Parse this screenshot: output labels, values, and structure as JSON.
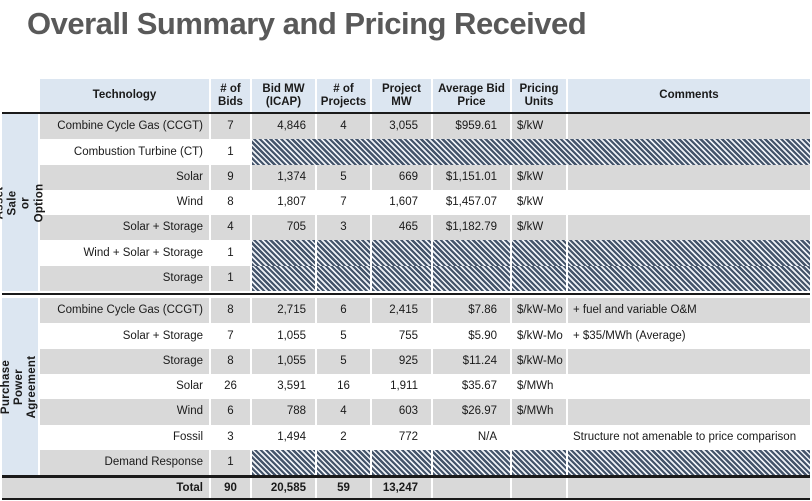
{
  "title": "Overall Summary and Pricing Received",
  "table": {
    "columns": [
      "Technology",
      "# of\nBids",
      "Bid MW\n(ICAP)",
      "# of\nProjects",
      "Project\nMW",
      "Average Bid\nPrice",
      "Pricing\nUnits",
      "Comments"
    ],
    "groups": [
      {
        "label": "Asset Sale or Option",
        "rows": [
          {
            "technology": "Combine Cycle Gas (CCGT)",
            "bids": "7",
            "bid_mw": "4,846",
            "projects": "4",
            "project_mw": "3,055",
            "avg_price": "$959.61",
            "units": "$/kW",
            "comments": "",
            "hatched": false
          },
          {
            "technology": "Combustion Turbine (CT)",
            "bids": "1",
            "bid_mw": "",
            "projects": "",
            "project_mw": "",
            "avg_price": "",
            "units": "",
            "comments": "",
            "hatched": true,
            "merged": true
          },
          {
            "technology": "Solar",
            "bids": "9",
            "bid_mw": "1,374",
            "projects": "5",
            "project_mw": "669",
            "avg_price": "$1,151.01",
            "units": "$/kW",
            "comments": "",
            "hatched": false
          },
          {
            "technology": "Wind",
            "bids": "8",
            "bid_mw": "1,807",
            "projects": "7",
            "project_mw": "1,607",
            "avg_price": "$1,457.07",
            "units": "$/kW",
            "comments": "",
            "hatched": false
          },
          {
            "technology": "Solar + Storage",
            "bids": "4",
            "bid_mw": "705",
            "projects": "3",
            "project_mw": "465",
            "avg_price": "$1,182.79",
            "units": "$/kW",
            "comments": "",
            "hatched": false
          },
          {
            "technology": "Wind + Solar + Storage",
            "bids": "1",
            "bid_mw": "",
            "projects": "",
            "project_mw": "",
            "avg_price": "",
            "units": "",
            "comments": "",
            "hatched": true,
            "merged": false
          },
          {
            "technology": "Storage",
            "bids": "1",
            "bid_mw": "",
            "projects": "",
            "project_mw": "",
            "avg_price": "",
            "units": "",
            "comments": "",
            "hatched": true,
            "merged": false
          }
        ]
      },
      {
        "label": "Purchase Power\nAgreement",
        "rows": [
          {
            "technology": "Combine Cycle Gas (CCGT)",
            "bids": "8",
            "bid_mw": "2,715",
            "projects": "6",
            "project_mw": "2,415",
            "avg_price": "$7.86",
            "units": "$/kW-Mo",
            "comments": "+ fuel and variable O&M",
            "hatched": false
          },
          {
            "technology": "Solar + Storage",
            "bids": "7",
            "bid_mw": "1,055",
            "projects": "5",
            "project_mw": "755",
            "avg_price": "$5.90",
            "units": "$/kW-Mo",
            "comments": "+ $35/MWh (Average)",
            "hatched": false
          },
          {
            "technology": "Storage",
            "bids": "8",
            "bid_mw": "1,055",
            "projects": "5",
            "project_mw": "925",
            "avg_price": "$11.24",
            "units": "$/kW-Mo",
            "comments": "",
            "hatched": false
          },
          {
            "technology": "Solar",
            "bids": "26",
            "bid_mw": "3,591",
            "projects": "16",
            "project_mw": "1,911",
            "avg_price": "$35.67",
            "units": "$/MWh",
            "comments": "",
            "hatched": false
          },
          {
            "technology": "Wind",
            "bids": "6",
            "bid_mw": "788",
            "projects": "4",
            "project_mw": "603",
            "avg_price": "$26.97",
            "units": "$/MWh",
            "comments": "",
            "hatched": false
          },
          {
            "technology": "Fossil",
            "bids": "3",
            "bid_mw": "1,494",
            "projects": "2",
            "project_mw": "772",
            "avg_price": "N/A",
            "units": "",
            "comments": "Structure not amenable to price comparison",
            "hatched": false
          },
          {
            "technology": "Demand Response",
            "bids": "1",
            "bid_mw": "",
            "projects": "",
            "project_mw": "",
            "avg_price": "",
            "units": "",
            "comments": "",
            "hatched": true,
            "merged": false
          }
        ]
      }
    ],
    "total": {
      "label": "Total",
      "bids": "90",
      "bid_mw": "20,585",
      "projects": "59",
      "project_mw": "13,247",
      "avg_price": "",
      "units": "",
      "comments": ""
    }
  },
  "colors": {
    "title_text": "#595959",
    "header_bg": "#dce6f1",
    "group_label_bg": "#dce6f1",
    "row_gray": "#d9d9d9",
    "row_white": "#ffffff",
    "total_bg": "#d9d9d9",
    "hatch_dark": "#44546a",
    "hatch_light": "#eef1f6",
    "border_dark": "#1a1a1a",
    "body_text": "#1a1a1a"
  }
}
